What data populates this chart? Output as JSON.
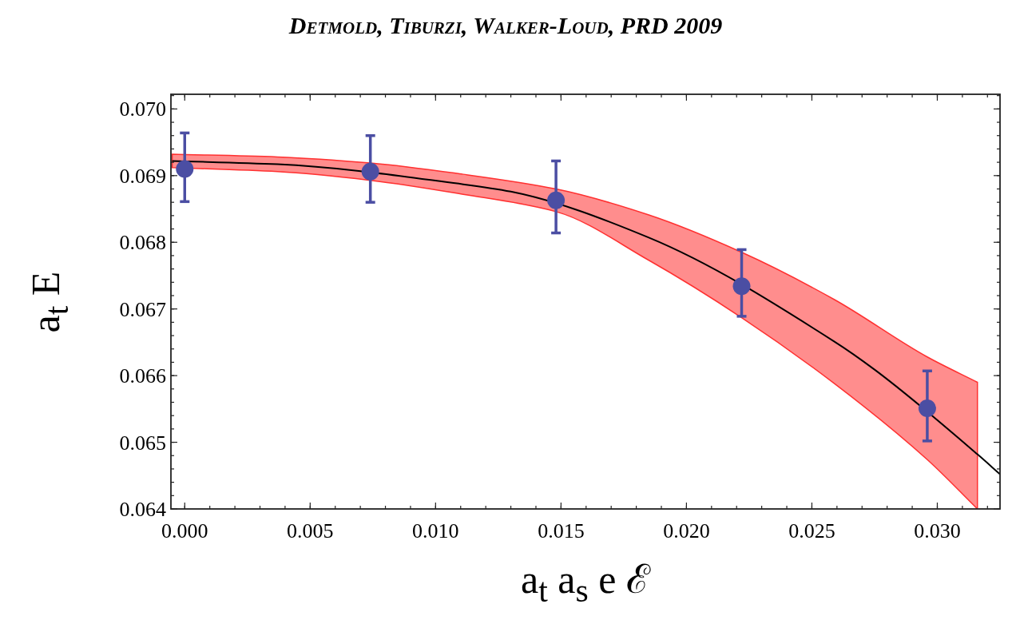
{
  "chart_data": {
    "type": "scatter",
    "title": "Detmold, Tiburzi, Walker-Loud, PRD 2009",
    "xlabel": "a$_{t}$ a$_{s}$ e ℰ",
    "ylabel": "a$_{t}$ E",
    "series": [
      {
        "type": "line",
        "color": "#ff3030",
        "x": [
          -0.0005,
          0.0037,
          0.0074,
          0.0111,
          0.0148,
          0.0185,
          0.0222,
          0.0259,
          0.0296,
          0.0316
        ],
        "values": [
          null,
          null,
          null,
          null,
          null,
          null,
          null,
          null,
          null,
          null
        ],
        "lower": [
          0.06912,
          0.06906,
          0.06893,
          0.06872,
          0.06846,
          0.06773,
          0.06687,
          0.06588,
          0.06474,
          0.064
        ],
        "upper": [
          0.06932,
          0.06928,
          0.06919,
          0.06902,
          0.0688,
          0.06841,
          0.06785,
          0.06714,
          0.06628,
          0.0659
        ]
      },
      {
        "type": "line",
        "color": "#000000",
        "x": [
          -0.0005,
          0.0037,
          0.0111,
          0.013,
          0.0185,
          0.0259,
          0.0275,
          0.0316,
          0.0325
        ],
        "values": [
          0.06922,
          0.06917,
          0.06887,
          0.06876,
          0.06807,
          0.06651,
          0.06609,
          0.06482,
          0.06452
        ],
        "marker": "none",
        "line_style": "solid"
      },
      {
        "color": "#4b4ea3",
        "x": [
          0,
          0.0074,
          0.0148,
          0.0222,
          0.0296
        ],
        "values": [
          0.0691,
          0.06906,
          0.06863,
          0.06734,
          0.06551
        ],
        "errors": [
          [
            0.06861,
            0.06964
          ],
          [
            0.0686,
            0.0696
          ],
          [
            0.06814,
            0.06922
          ],
          [
            0.06689,
            0.06789
          ],
          [
            0.06502,
            0.06607
          ]
        ],
        "marker": "circle"
      }
    ],
    "xlim": [
      -0.00055,
      0.0325
    ],
    "xticks": [
      {
        "value": 0,
        "label": "0.000"
      },
      0.005,
      {
        "value": 0.01,
        "label": "0.010"
      },
      0.015,
      {
        "value": 0.02,
        "label": "0.020"
      },
      0.025,
      {
        "value": 0.03,
        "label": "0.030"
      }
    ],
    "ylim": [
      0.064,
      0.07022
    ],
    "yticks": [
      0.064,
      0.065,
      0.066,
      0.067,
      0.068,
      0.069,
      {
        "value": 0.07,
        "label": "0.070"
      }
    ],
    "grid": false
  }
}
